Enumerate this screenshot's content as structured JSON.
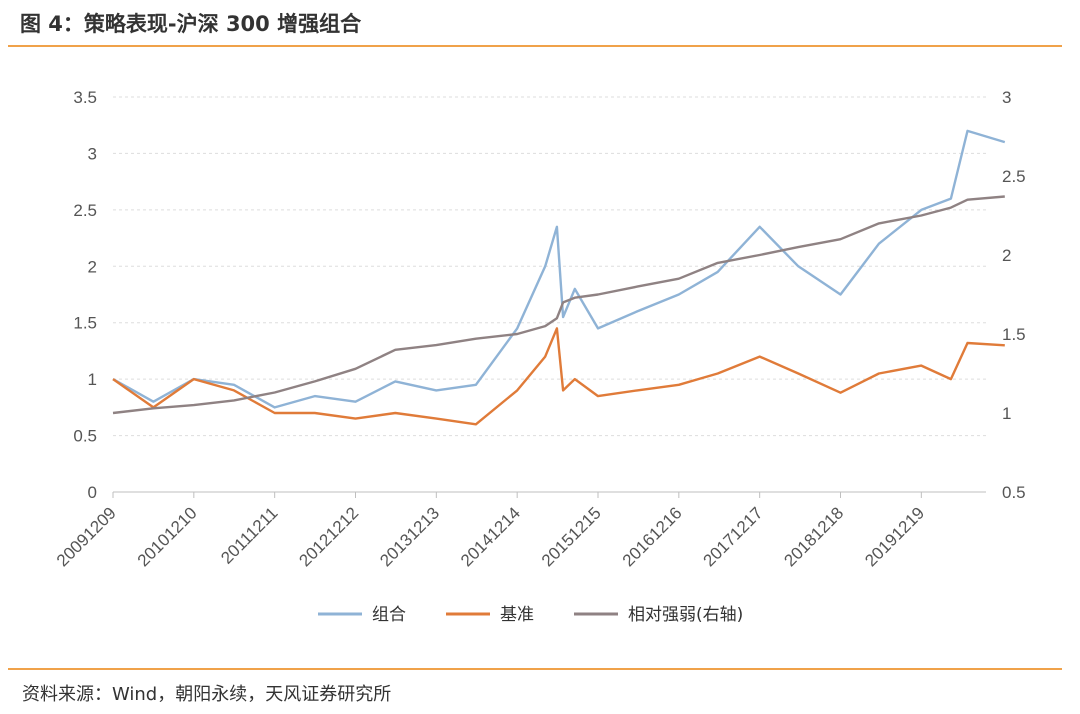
{
  "title": "图 4：策略表现-沪深 300 增强组合",
  "source": "资料来源：Wind，朝阳永续，天风证券研究所",
  "colors": {
    "accent": "#f0a24a",
    "portfolio": "#8fb3d6",
    "benchmark": "#e07b39",
    "relative": "#8f8283",
    "grid": "#dddddd"
  },
  "chart_data": {
    "type": "line",
    "x_ticks": [
      "20091209",
      "20101210",
      "20111211",
      "20121212",
      "20131213",
      "20141214",
      "20151215",
      "20161216",
      "20171217",
      "20181218",
      "20191219"
    ],
    "y_left": {
      "ticks": [
        "0",
        "0.5",
        "1",
        "1.5",
        "2",
        "2.5",
        "3",
        "3.5"
      ],
      "range": [
        0,
        3.5
      ]
    },
    "y_right": {
      "ticks": [
        "0.5",
        "1",
        "1.5",
        "2",
        "2.5",
        "3"
      ],
      "range": [
        0.5,
        3
      ],
      "label": ""
    },
    "grid": true,
    "legend_position": "bottom",
    "x": [
      "20091209",
      "20100610",
      "20101210",
      "20110610",
      "20111211",
      "20120610",
      "20121212",
      "20130610",
      "20131213",
      "20140610",
      "20141214",
      "20150420",
      "20150612",
      "20150710",
      "20150901",
      "20151215",
      "20160610",
      "20161216",
      "20170610",
      "20171217",
      "20180610",
      "20181218",
      "20190610",
      "20191219",
      "20200501",
      "20200715",
      "20201231"
    ],
    "series": [
      {
        "name": "组合",
        "axis": "left",
        "color": "#8fb3d6",
        "values": [
          1.0,
          0.8,
          1.0,
          0.95,
          0.75,
          0.85,
          0.8,
          0.98,
          0.9,
          0.95,
          1.45,
          2.0,
          2.35,
          1.55,
          1.8,
          1.45,
          1.6,
          1.75,
          1.95,
          2.35,
          2.0,
          1.75,
          2.2,
          2.5,
          2.6,
          3.2,
          3.1
        ]
      },
      {
        "name": "基准",
        "axis": "left",
        "color": "#e07b39",
        "values": [
          1.0,
          0.75,
          1.0,
          0.9,
          0.7,
          0.7,
          0.65,
          0.7,
          0.65,
          0.6,
          0.9,
          1.2,
          1.45,
          0.9,
          1.0,
          0.85,
          0.9,
          0.95,
          1.05,
          1.2,
          1.05,
          0.88,
          1.05,
          1.12,
          1.0,
          1.32,
          1.3
        ]
      },
      {
        "name": "相对强弱(右轴)",
        "axis": "right",
        "color": "#8f8283",
        "values": [
          1.0,
          1.03,
          1.05,
          1.08,
          1.13,
          1.2,
          1.28,
          1.4,
          1.43,
          1.47,
          1.5,
          1.55,
          1.6,
          1.7,
          1.73,
          1.75,
          1.8,
          1.85,
          1.95,
          2.0,
          2.05,
          2.1,
          2.2,
          2.25,
          2.3,
          2.35,
          2.37
        ]
      }
    ]
  }
}
